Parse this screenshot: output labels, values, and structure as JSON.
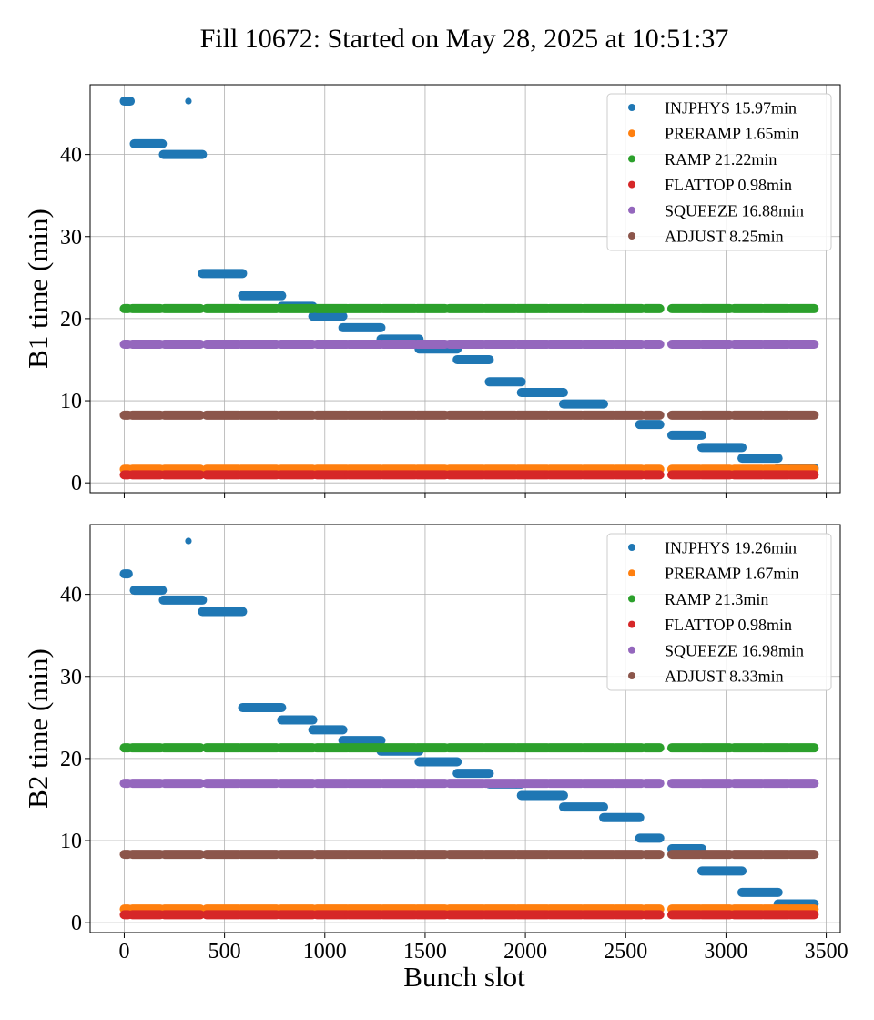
{
  "figure": {
    "title": "Fill 10672: Started on May 28, 2025 at 10:51:37",
    "xlabel": "Bunch slot"
  },
  "chart_data": [
    {
      "type": "scatter",
      "ylabel": "B1 time (min)",
      "xlim": [
        -170,
        3570
      ],
      "ylim": [
        -1.2,
        48.5
      ],
      "xticks": [
        0,
        500,
        1000,
        1500,
        2000,
        2500,
        3000,
        3500
      ],
      "yticks": [
        0,
        10,
        20,
        30,
        40
      ],
      "show_xtick_labels": false,
      "grid": true,
      "legend_position": "top-right",
      "series": [
        {
          "name": "INJPHYS 15.97min",
          "color": "#1f77b4",
          "segments": [
            [
              0,
              30,
              46.5
            ],
            [
              50,
              190,
              41.3
            ],
            [
              195,
              390,
              40.0
            ],
            [
              390,
              590,
              25.5
            ],
            [
              590,
              785,
              22.8
            ],
            [
              785,
              940,
              21.5
            ],
            [
              940,
              1090,
              20.3
            ],
            [
              1090,
              1280,
              18.9
            ],
            [
              1280,
              1470,
              17.5
            ],
            [
              1470,
              1660,
              16.3
            ],
            [
              1660,
              1820,
              15.0
            ],
            [
              1820,
              1980,
              12.3
            ],
            [
              1980,
              2190,
              11.0
            ],
            [
              2190,
              2390,
              9.6
            ],
            [
              2570,
              2670,
              7.1
            ],
            [
              2730,
              2880,
              5.8
            ],
            [
              2880,
              3080,
              4.3
            ],
            [
              3080,
              3260,
              3.0
            ],
            [
              3260,
              3440,
              1.8
            ]
          ],
          "points": [
            [
              320,
              46.5
            ]
          ]
        },
        {
          "name": "PRERAMP 1.65min",
          "color": "#ff7f0e",
          "y": 1.65
        },
        {
          "name": "RAMP 21.22min",
          "color": "#2ca02c",
          "y": 21.22
        },
        {
          "name": "FLATTOP 0.98min",
          "color": "#d62728",
          "y": 0.98
        },
        {
          "name": "SQUEEZE 16.88min",
          "color": "#9467bd",
          "y": 16.88
        },
        {
          "name": "ADJUST 8.25min",
          "color": "#8c564b",
          "y": 8.25
        }
      ]
    },
    {
      "type": "scatter",
      "ylabel": "B2 time (min)",
      "xlim": [
        -170,
        3570
      ],
      "ylim": [
        -1.2,
        48.5
      ],
      "xticks": [
        0,
        500,
        1000,
        1500,
        2000,
        2500,
        3000,
        3500
      ],
      "yticks": [
        0,
        10,
        20,
        30,
        40
      ],
      "show_xtick_labels": true,
      "grid": true,
      "legend_position": "top-right",
      "series": [
        {
          "name": "INJPHYS 19.26min",
          "color": "#1f77b4",
          "segments": [
            [
              0,
              20,
              42.5
            ],
            [
              50,
              190,
              40.5
            ],
            [
              195,
              390,
              39.3
            ],
            [
              390,
              590,
              37.9
            ],
            [
              590,
              785,
              26.2
            ],
            [
              785,
              940,
              24.7
            ],
            [
              940,
              1090,
              23.5
            ],
            [
              1090,
              1280,
              22.2
            ],
            [
              1280,
              1470,
              20.9
            ],
            [
              1470,
              1660,
              19.6
            ],
            [
              1660,
              1820,
              18.2
            ],
            [
              1820,
              1980,
              16.9
            ],
            [
              1980,
              2190,
              15.5
            ],
            [
              2190,
              2390,
              14.1
            ],
            [
              2390,
              2570,
              12.8
            ],
            [
              2570,
              2670,
              10.3
            ],
            [
              2730,
              2880,
              9.0
            ],
            [
              2880,
              3080,
              6.3
            ],
            [
              3080,
              3260,
              3.7
            ],
            [
              3260,
              3440,
              2.3
            ]
          ],
          "points": [
            [
              320,
              46.5
            ]
          ]
        },
        {
          "name": "PRERAMP 1.67min",
          "color": "#ff7f0e",
          "y": 1.67
        },
        {
          "name": "RAMP 21.3min",
          "color": "#2ca02c",
          "y": 21.3
        },
        {
          "name": "FLATTOP 0.98min",
          "color": "#d62728",
          "y": 0.98
        },
        {
          "name": "SQUEEZE 16.98min",
          "color": "#9467bd",
          "y": 16.98
        },
        {
          "name": "ADJUST 8.33min",
          "color": "#8c564b",
          "y": 8.33
        }
      ]
    }
  ],
  "train_ranges": [
    [
      0,
      20
    ],
    [
      40,
      180
    ],
    [
      200,
      380
    ],
    [
      410,
      570
    ],
    [
      580,
      760
    ],
    [
      780,
      940
    ],
    [
      960,
      1110
    ],
    [
      1120,
      1280
    ],
    [
      1290,
      1450
    ],
    [
      1460,
      1600
    ],
    [
      1620,
      1790
    ],
    [
      1800,
      1950
    ],
    [
      1960,
      2110
    ],
    [
      2120,
      2280
    ],
    [
      2290,
      2440
    ],
    [
      2450,
      2580
    ],
    [
      2600,
      2670
    ],
    [
      2730,
      2870
    ],
    [
      2880,
      3020
    ],
    [
      3040,
      3180
    ],
    [
      3190,
      3310
    ],
    [
      3320,
      3440
    ]
  ]
}
